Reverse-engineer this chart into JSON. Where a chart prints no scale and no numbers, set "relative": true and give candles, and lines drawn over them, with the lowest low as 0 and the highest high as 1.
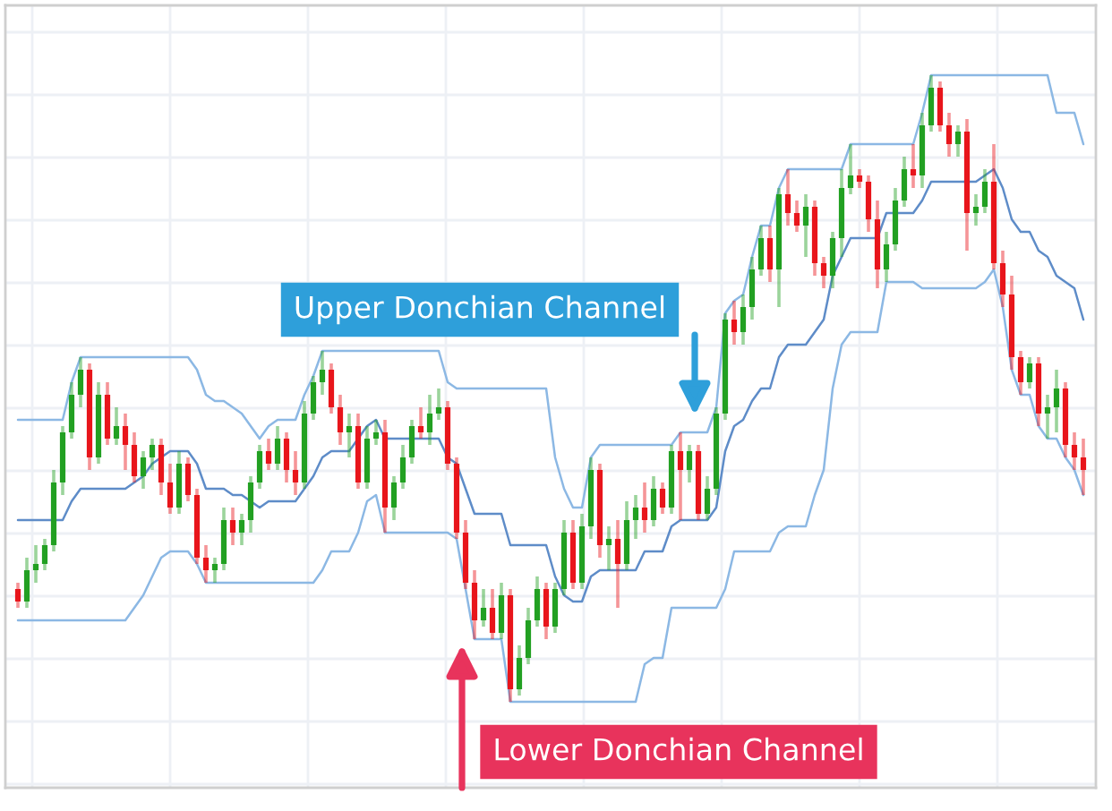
{
  "chart_data": {
    "type": "candlestick",
    "relative": true,
    "grid": true,
    "categories": [
      null,
      null,
      null,
      null,
      null,
      null,
      null,
      null,
      null,
      null,
      null,
      null,
      null,
      null,
      null,
      null,
      null,
      null,
      null,
      null,
      null,
      null,
      null,
      null,
      null,
      null,
      null,
      null,
      null,
      null,
      null,
      null,
      null,
      null,
      null,
      null,
      null,
      null,
      null,
      null,
      null,
      null,
      null,
      null,
      null,
      null,
      null,
      null,
      null,
      null,
      null,
      null,
      null,
      null,
      null,
      null,
      null,
      null,
      null,
      null,
      null,
      null,
      null,
      null,
      null,
      null,
      null,
      null,
      null,
      null,
      null,
      null,
      null,
      null,
      null,
      null,
      null,
      null,
      null,
      null,
      null,
      null,
      null,
      null,
      null,
      null,
      null,
      null,
      null,
      null,
      null,
      null,
      null,
      null,
      null,
      null,
      null,
      null,
      null,
      null,
      null,
      null,
      null,
      null,
      null,
      null,
      null,
      null,
      null,
      null,
      null,
      null,
      null,
      null,
      null,
      null,
      null,
      null,
      null,
      null
    ],
    "ohlc": [
      [
        0.18,
        0.19,
        0.15,
        0.16
      ],
      [
        0.16,
        0.23,
        0.15,
        0.21
      ],
      [
        0.21,
        0.25,
        0.19,
        0.22
      ],
      [
        0.22,
        0.26,
        0.21,
        0.25
      ],
      [
        0.25,
        0.37,
        0.24,
        0.35
      ],
      [
        0.35,
        0.44,
        0.33,
        0.43
      ],
      [
        0.43,
        0.51,
        0.42,
        0.49
      ],
      [
        0.49,
        0.55,
        0.47,
        0.53
      ],
      [
        0.53,
        0.54,
        0.37,
        0.39
      ],
      [
        0.39,
        0.51,
        0.38,
        0.49
      ],
      [
        0.49,
        0.51,
        0.41,
        0.42
      ],
      [
        0.42,
        0.47,
        0.41,
        0.44
      ],
      [
        0.44,
        0.46,
        0.37,
        0.41
      ],
      [
        0.41,
        0.43,
        0.35,
        0.36
      ],
      [
        0.36,
        0.4,
        0.34,
        0.39
      ],
      [
        0.39,
        0.42,
        0.37,
        0.41
      ],
      [
        0.41,
        0.42,
        0.33,
        0.35
      ],
      [
        0.35,
        0.38,
        0.3,
        0.31
      ],
      [
        0.31,
        0.4,
        0.3,
        0.38
      ],
      [
        0.38,
        0.39,
        0.32,
        0.33
      ],
      [
        0.33,
        0.34,
        0.22,
        0.23
      ],
      [
        0.23,
        0.25,
        0.19,
        0.21
      ],
      [
        0.21,
        0.23,
        0.19,
        0.22
      ],
      [
        0.22,
        0.31,
        0.21,
        0.29
      ],
      [
        0.29,
        0.31,
        0.25,
        0.27
      ],
      [
        0.27,
        0.3,
        0.25,
        0.29
      ],
      [
        0.29,
        0.36,
        0.27,
        0.35
      ],
      [
        0.35,
        0.41,
        0.34,
        0.4
      ],
      [
        0.4,
        0.42,
        0.37,
        0.38
      ],
      [
        0.38,
        0.44,
        0.37,
        0.42
      ],
      [
        0.42,
        0.43,
        0.35,
        0.37
      ],
      [
        0.37,
        0.4,
        0.33,
        0.35
      ],
      [
        0.35,
        0.48,
        0.34,
        0.46
      ],
      [
        0.46,
        0.52,
        0.45,
        0.51
      ],
      [
        0.51,
        0.56,
        0.49,
        0.53
      ],
      [
        0.53,
        0.54,
        0.46,
        0.47
      ],
      [
        0.47,
        0.49,
        0.41,
        0.43
      ],
      [
        0.43,
        0.46,
        0.39,
        0.44
      ],
      [
        0.44,
        0.46,
        0.34,
        0.35
      ],
      [
        0.35,
        0.44,
        0.34,
        0.42
      ],
      [
        0.42,
        0.45,
        0.41,
        0.43
      ],
      [
        0.43,
        0.45,
        0.27,
        0.31
      ],
      [
        0.31,
        0.36,
        0.29,
        0.35
      ],
      [
        0.35,
        0.41,
        0.34,
        0.39
      ],
      [
        0.39,
        0.45,
        0.38,
        0.44
      ],
      [
        0.44,
        0.47,
        0.42,
        0.43
      ],
      [
        0.43,
        0.49,
        0.41,
        0.46
      ],
      [
        0.46,
        0.5,
        0.45,
        0.47
      ],
      [
        0.47,
        0.48,
        0.37,
        0.38
      ],
      [
        0.38,
        0.39,
        0.26,
        0.27
      ],
      [
        0.27,
        0.29,
        0.18,
        0.19
      ],
      [
        0.19,
        0.21,
        0.1,
        0.13
      ],
      [
        0.13,
        0.18,
        0.12,
        0.15
      ],
      [
        0.15,
        0.18,
        0.1,
        0.11
      ],
      [
        0.11,
        0.19,
        0.1,
        0.17
      ],
      [
        0.17,
        0.18,
        0.0,
        0.02
      ],
      [
        0.02,
        0.09,
        0.01,
        0.07
      ],
      [
        0.07,
        0.15,
        0.06,
        0.13
      ],
      [
        0.13,
        0.2,
        0.12,
        0.18
      ],
      [
        0.18,
        0.19,
        0.1,
        0.12
      ],
      [
        0.12,
        0.19,
        0.11,
        0.18
      ],
      [
        0.18,
        0.29,
        0.17,
        0.27
      ],
      [
        0.27,
        0.29,
        0.18,
        0.19
      ],
      [
        0.19,
        0.3,
        0.18,
        0.28
      ],
      [
        0.28,
        0.39,
        0.26,
        0.37
      ],
      [
        0.37,
        0.38,
        0.23,
        0.25
      ],
      [
        0.25,
        0.28,
        0.21,
        0.26
      ],
      [
        0.26,
        0.29,
        0.15,
        0.22
      ],
      [
        0.22,
        0.32,
        0.21,
        0.29
      ],
      [
        0.29,
        0.33,
        0.26,
        0.31
      ],
      [
        0.31,
        0.35,
        0.27,
        0.29
      ],
      [
        0.29,
        0.36,
        0.28,
        0.34
      ],
      [
        0.34,
        0.35,
        0.3,
        0.31
      ],
      [
        0.31,
        0.41,
        0.3,
        0.4
      ],
      [
        0.4,
        0.43,
        0.29,
        0.37
      ],
      [
        0.37,
        0.41,
        0.35,
        0.4
      ],
      [
        0.4,
        0.41,
        0.29,
        0.3
      ],
      [
        0.3,
        0.36,
        0.29,
        0.34
      ],
      [
        0.34,
        0.47,
        0.33,
        0.46
      ],
      [
        0.46,
        0.62,
        0.45,
        0.61
      ],
      [
        0.61,
        0.64,
        0.57,
        0.59
      ],
      [
        0.59,
        0.65,
        0.57,
        0.63
      ],
      [
        0.63,
        0.71,
        0.61,
        0.69
      ],
      [
        0.69,
        0.76,
        0.68,
        0.74
      ],
      [
        0.74,
        0.76,
        0.67,
        0.69
      ],
      [
        0.69,
        0.82,
        0.63,
        0.81
      ],
      [
        0.81,
        0.85,
        0.76,
        0.78
      ],
      [
        0.78,
        0.8,
        0.75,
        0.76
      ],
      [
        0.76,
        0.81,
        0.71,
        0.79
      ],
      [
        0.79,
        0.8,
        0.68,
        0.7
      ],
      [
        0.7,
        0.71,
        0.66,
        0.68
      ],
      [
        0.68,
        0.75,
        0.66,
        0.74
      ],
      [
        0.74,
        0.85,
        0.71,
        0.82
      ],
      [
        0.82,
        0.89,
        0.81,
        0.84
      ],
      [
        0.84,
        0.85,
        0.82,
        0.83
      ],
      [
        0.83,
        0.84,
        0.75,
        0.77
      ],
      [
        0.77,
        0.8,
        0.66,
        0.69
      ],
      [
        0.69,
        0.75,
        0.67,
        0.73
      ],
      [
        0.73,
        0.82,
        0.72,
        0.8
      ],
      [
        0.8,
        0.87,
        0.79,
        0.85
      ],
      [
        0.85,
        0.89,
        0.82,
        0.84
      ],
      [
        0.84,
        0.94,
        0.82,
        0.92
      ],
      [
        0.92,
        1.0,
        0.91,
        0.98
      ],
      [
        0.98,
        0.99,
        0.91,
        0.92
      ],
      [
        0.92,
        0.94,
        0.87,
        0.89
      ],
      [
        0.89,
        0.92,
        0.87,
        0.91
      ],
      [
        0.91,
        0.93,
        0.72,
        0.78
      ],
      [
        0.78,
        0.81,
        0.76,
        0.79
      ],
      [
        0.79,
        0.85,
        0.78,
        0.83
      ],
      [
        0.83,
        0.89,
        0.69,
        0.7
      ],
      [
        0.7,
        0.72,
        0.63,
        0.65
      ],
      [
        0.65,
        0.68,
        0.53,
        0.55
      ],
      [
        0.55,
        0.56,
        0.49,
        0.51
      ],
      [
        0.51,
        0.55,
        0.5,
        0.54
      ],
      [
        0.54,
        0.55,
        0.44,
        0.46
      ],
      [
        0.46,
        0.49,
        0.42,
        0.47
      ],
      [
        0.47,
        0.53,
        0.43,
        0.5
      ],
      [
        0.5,
        0.51,
        0.39,
        0.41
      ],
      [
        0.41,
        0.43,
        0.37,
        0.39
      ],
      [
        0.39,
        0.42,
        0.33,
        0.37
      ]
    ],
    "colors": [
      "#e8151b",
      "#22a022",
      "#22a022",
      "#22a022",
      "#22a022",
      "#22a022",
      "#22a022",
      "#22a022",
      "#e8151b",
      "#22a022",
      "#e8151b",
      "#22a022",
      "#e8151b",
      "#e8151b",
      "#22a022",
      "#22a022",
      "#e8151b",
      "#e8151b",
      "#22a022",
      "#e8151b",
      "#e8151b",
      "#e8151b",
      "#22a022",
      "#22a022",
      "#e8151b",
      "#22a022",
      "#22a022",
      "#22a022",
      "#e8151b",
      "#22a022",
      "#e8151b",
      "#e8151b",
      "#22a022",
      "#22a022",
      "#22a022",
      "#e8151b",
      "#e8151b",
      "#22a022",
      "#e8151b",
      "#22a022",
      "#22a022",
      "#e8151b",
      "#22a022",
      "#22a022",
      "#22a022",
      "#e8151b",
      "#22a022",
      "#22a022",
      "#e8151b",
      "#e8151b",
      "#e8151b",
      "#e8151b",
      "#22a022",
      "#e8151b",
      "#22a022",
      "#e8151b",
      "#22a022",
      "#22a022",
      "#22a022",
      "#e8151b",
      "#22a022",
      "#22a022",
      "#e8151b",
      "#22a022",
      "#22a022",
      "#e8151b",
      "#22a022",
      "#e8151b",
      "#22a022",
      "#22a022",
      "#e8151b",
      "#22a022",
      "#e8151b",
      "#22a022",
      "#e8151b",
      "#22a022",
      "#e8151b",
      "#22a022",
      "#22a022",
      "#22a022",
      "#e8151b",
      "#22a022",
      "#22a022",
      "#22a022",
      "#e8151b",
      "#22a022",
      "#e8151b",
      "#e8151b",
      "#22a022",
      "#e8151b",
      "#e8151b",
      "#22a022",
      "#22a022",
      "#22a022",
      "#e8151b",
      "#e8151b",
      "#e8151b",
      "#22a022",
      "#22a022",
      "#22a022",
      "#e8151b",
      "#22a022",
      "#22a022",
      "#e8151b",
      "#e8151b",
      "#22a022",
      "#e8151b",
      "#22a022",
      "#22a022",
      "#e8151b",
      "#e8151b",
      "#e8151b",
      "#e8151b",
      "#22a022",
      "#e8151b",
      "#22a022",
      "#22a022",
      "#e8151b",
      "#e8151b",
      "#e8151b"
    ],
    "series": [
      {
        "type": "line",
        "color": "#8cb8e4",
        "values": [
          0.45,
          0.45,
          0.45,
          0.45,
          0.45,
          0.45,
          0.51,
          0.55,
          0.55,
          0.55,
          0.55,
          0.55,
          0.55,
          0.55,
          0.55,
          0.55,
          0.55,
          0.55,
          0.55,
          0.55,
          0.53,
          0.49,
          0.48,
          0.48,
          0.47,
          0.46,
          0.44,
          0.42,
          0.44,
          0.45,
          0.45,
          0.45,
          0.49,
          0.52,
          0.56,
          0.56,
          0.56,
          0.56,
          0.56,
          0.56,
          0.56,
          0.56,
          0.56,
          0.56,
          0.56,
          0.56,
          0.56,
          0.56,
          0.51,
          0.5,
          0.5,
          0.5,
          0.5,
          0.5,
          0.5,
          0.5,
          0.5,
          0.5,
          0.5,
          0.5,
          0.39,
          0.34,
          0.31,
          0.31,
          0.39,
          0.41,
          0.41,
          0.41,
          0.41,
          0.41,
          0.41,
          0.41,
          0.41,
          0.41,
          0.43,
          0.43,
          0.43,
          0.43,
          0.47,
          0.62,
          0.64,
          0.65,
          0.71,
          0.76,
          0.76,
          0.82,
          0.85,
          0.85,
          0.85,
          0.85,
          0.85,
          0.85,
          0.85,
          0.89,
          0.89,
          0.89,
          0.89,
          0.89,
          0.89,
          0.89,
          0.89,
          0.94,
          1.0,
          1.0,
          1.0,
          1.0,
          1.0,
          1.0,
          1.0,
          1.0,
          1.0,
          1.0,
          1.0,
          1.0,
          1.0,
          1.0,
          0.94,
          0.94,
          0.94,
          0.89
        ]
      },
      {
        "type": "line",
        "color": "#5e8cc8",
        "values": [
          0.29,
          0.29,
          0.29,
          0.29,
          0.29,
          0.29,
          0.32,
          0.34,
          0.34,
          0.34,
          0.34,
          0.34,
          0.34,
          0.35,
          0.36,
          0.38,
          0.39,
          0.4,
          0.4,
          0.4,
          0.38,
          0.34,
          0.34,
          0.34,
          0.33,
          0.33,
          0.32,
          0.31,
          0.32,
          0.32,
          0.32,
          0.32,
          0.34,
          0.36,
          0.39,
          0.4,
          0.4,
          0.4,
          0.42,
          0.44,
          0.45,
          0.42,
          0.42,
          0.42,
          0.42,
          0.42,
          0.42,
          0.42,
          0.39,
          0.38,
          0.34,
          0.3,
          0.3,
          0.3,
          0.3,
          0.25,
          0.25,
          0.25,
          0.25,
          0.25,
          0.2,
          0.17,
          0.16,
          0.16,
          0.2,
          0.21,
          0.21,
          0.21,
          0.21,
          0.21,
          0.24,
          0.24,
          0.24,
          0.28,
          0.29,
          0.29,
          0.29,
          0.29,
          0.31,
          0.4,
          0.44,
          0.45,
          0.48,
          0.5,
          0.5,
          0.55,
          0.57,
          0.57,
          0.57,
          0.59,
          0.61,
          0.68,
          0.71,
          0.74,
          0.74,
          0.74,
          0.74,
          0.78,
          0.78,
          0.78,
          0.78,
          0.8,
          0.83,
          0.83,
          0.83,
          0.83,
          0.83,
          0.83,
          0.84,
          0.85,
          0.82,
          0.77,
          0.75,
          0.75,
          0.72,
          0.71,
          0.68,
          0.67,
          0.66,
          0.61
        ]
      },
      {
        "type": "line",
        "color": "#8cb8e4",
        "values": [
          0.13,
          0.13,
          0.13,
          0.13,
          0.13,
          0.13,
          0.13,
          0.13,
          0.13,
          0.13,
          0.13,
          0.13,
          0.13,
          0.15,
          0.17,
          0.2,
          0.23,
          0.24,
          0.24,
          0.24,
          0.22,
          0.19,
          0.19,
          0.19,
          0.19,
          0.19,
          0.19,
          0.19,
          0.19,
          0.19,
          0.19,
          0.19,
          0.19,
          0.19,
          0.21,
          0.24,
          0.24,
          0.24,
          0.27,
          0.32,
          0.33,
          0.27,
          0.27,
          0.27,
          0.27,
          0.27,
          0.27,
          0.27,
          0.27,
          0.26,
          0.18,
          0.1,
          0.1,
          0.1,
          0.1,
          0.0,
          0.0,
          0.0,
          0.0,
          0.0,
          0.0,
          0.0,
          0.0,
          0.0,
          0.0,
          0.0,
          0.0,
          0.0,
          0.0,
          0.0,
          0.06,
          0.07,
          0.07,
          0.15,
          0.15,
          0.15,
          0.15,
          0.15,
          0.15,
          0.18,
          0.24,
          0.24,
          0.24,
          0.24,
          0.24,
          0.27,
          0.28,
          0.28,
          0.28,
          0.33,
          0.37,
          0.5,
          0.57,
          0.59,
          0.59,
          0.59,
          0.59,
          0.67,
          0.67,
          0.67,
          0.67,
          0.66,
          0.66,
          0.66,
          0.66,
          0.66,
          0.66,
          0.66,
          0.67,
          0.69,
          0.63,
          0.53,
          0.49,
          0.49,
          0.44,
          0.42,
          0.42,
          0.39,
          0.37,
          0.33
        ]
      }
    ],
    "annotations": [
      "Upper Donchian Channel",
      "Lower Donchian Channel"
    ]
  }
}
